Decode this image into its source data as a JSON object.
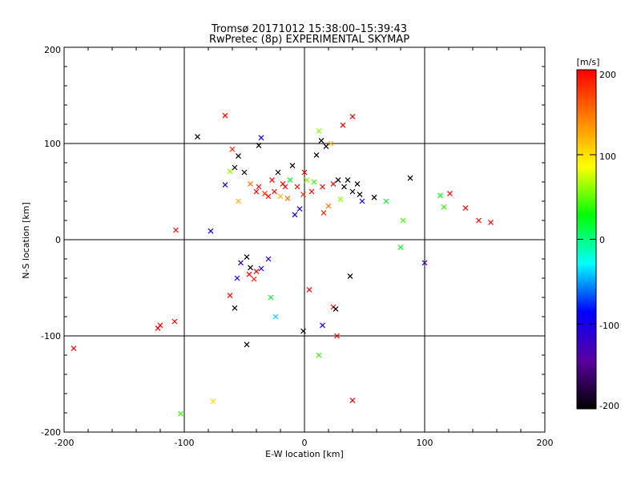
{
  "chart_data": {
    "type": "scatter",
    "title": "Tromsø 20171012 15:38:00–15:39:43",
    "subtitle": "RwPretec (8p) EXPERIMENTAL SKYMAP",
    "xlabel": "E-W location [km]",
    "ylabel": "N-S location [km]",
    "xlim": [
      -200,
      200
    ],
    "ylim": [
      -200,
      200
    ],
    "x_ticks": [
      "-200",
      "-100",
      "0",
      "100",
      "200"
    ],
    "y_ticks": [
      "-200",
      "-100",
      "0",
      "100",
      "200"
    ],
    "grid": true,
    "colorbar": {
      "unit": "[m/s]",
      "range": [
        -200,
        200
      ],
      "ticks": [
        "200",
        "100",
        "0",
        "-100",
        "-200"
      ],
      "colors": [
        "#000000",
        "#5a00a0",
        "#0000ff",
        "#00ffff",
        "#00ff00",
        "#ffff00",
        "#ff8000",
        "#ff0000"
      ]
    },
    "markers": {
      "cross": "large x markers",
      "dot": "small dot markers"
    },
    "points": [
      {
        "x": -66,
        "y": 129,
        "v": 200,
        "m": "x"
      },
      {
        "x": -89,
        "y": 107,
        "v": -200,
        "m": "x"
      },
      {
        "x": -36,
        "y": 106,
        "v": -100,
        "m": "x"
      },
      {
        "x": -38,
        "y": 98,
        "v": -200,
        "m": "x"
      },
      {
        "x": -60,
        "y": 94,
        "v": 180,
        "m": "x"
      },
      {
        "x": -55,
        "y": 87,
        "v": -200,
        "m": "x"
      },
      {
        "x": -62,
        "y": 71,
        "v": 60,
        "m": "x"
      },
      {
        "x": -58,
        "y": 75,
        "v": -200,
        "m": "x"
      },
      {
        "x": -50,
        "y": 70,
        "v": -200,
        "m": "x"
      },
      {
        "x": -66,
        "y": 57,
        "v": -100,
        "m": "x"
      },
      {
        "x": -55,
        "y": 40,
        "v": 120,
        "m": "x"
      },
      {
        "x": -38,
        "y": 55,
        "v": 200,
        "m": "x"
      },
      {
        "x": -33,
        "y": 48,
        "v": 180,
        "m": "x"
      },
      {
        "x": -27,
        "y": 62,
        "v": 200,
        "m": "x"
      },
      {
        "x": -22,
        "y": 70,
        "v": -200,
        "m": "x"
      },
      {
        "x": -18,
        "y": 58,
        "v": 200,
        "m": "x"
      },
      {
        "x": -14,
        "y": 43,
        "v": 150,
        "m": "x"
      },
      {
        "x": -10,
        "y": 77,
        "v": -200,
        "m": "x"
      },
      {
        "x": -6,
        "y": 55,
        "v": 200,
        "m": "x"
      },
      {
        "x": -4,
        "y": 32,
        "v": -100,
        "m": "x"
      },
      {
        "x": -8,
        "y": 26,
        "v": -100,
        "m": "x"
      },
      {
        "x": 2,
        "y": 62,
        "v": 60,
        "m": "x"
      },
      {
        "x": 6,
        "y": 50,
        "v": 200,
        "m": "x"
      },
      {
        "x": 10,
        "y": 88,
        "v": -200,
        "m": "x"
      },
      {
        "x": 14,
        "y": 103,
        "v": -200,
        "m": "x"
      },
      {
        "x": 18,
        "y": 97,
        "v": -200,
        "m": "x"
      },
      {
        "x": 22,
        "y": 100,
        "v": 120,
        "m": "x"
      },
      {
        "x": 24,
        "y": 58,
        "v": 200,
        "m": "x"
      },
      {
        "x": 28,
        "y": 62,
        "v": -200,
        "m": "x"
      },
      {
        "x": 33,
        "y": 55,
        "v": -200,
        "m": "x"
      },
      {
        "x": 36,
        "y": 62,
        "v": -200,
        "m": "x"
      },
      {
        "x": 40,
        "y": 50,
        "v": -200,
        "m": "x"
      },
      {
        "x": 44,
        "y": 58,
        "v": -200,
        "m": "x"
      },
      {
        "x": 46,
        "y": 47,
        "v": -200,
        "m": "x"
      },
      {
        "x": 48,
        "y": 40,
        "v": -100,
        "m": "x"
      },
      {
        "x": 30,
        "y": 42,
        "v": 60,
        "m": "x"
      },
      {
        "x": 20,
        "y": 35,
        "v": 150,
        "m": "x"
      },
      {
        "x": 16,
        "y": 28,
        "v": 180,
        "m": "x"
      },
      {
        "x": 12,
        "y": 113,
        "v": 60,
        "m": "x"
      },
      {
        "x": 32,
        "y": 119,
        "v": 200,
        "m": "x"
      },
      {
        "x": 40,
        "y": 128,
        "v": 200,
        "m": "x"
      },
      {
        "x": 58,
        "y": 44,
        "v": -200,
        "m": "x"
      },
      {
        "x": 68,
        "y": 40,
        "v": 20,
        "m": "x"
      },
      {
        "x": 82,
        "y": 20,
        "v": 40,
        "m": "x"
      },
      {
        "x": 88,
        "y": 64,
        "v": -200,
        "m": "x"
      },
      {
        "x": 113,
        "y": 46,
        "v": 20,
        "m": "x"
      },
      {
        "x": 116,
        "y": 34,
        "v": 40,
        "m": "x"
      },
      {
        "x": 121,
        "y": 48,
        "v": 200,
        "m": "x"
      },
      {
        "x": 134,
        "y": 33,
        "v": 200,
        "m": "x"
      },
      {
        "x": 145,
        "y": 20,
        "v": 200,
        "m": "x"
      },
      {
        "x": 155,
        "y": 18,
        "v": 200,
        "m": "x"
      },
      {
        "x": 100,
        "y": -24,
        "v": -120,
        "m": "x"
      },
      {
        "x": 80,
        "y": -8,
        "v": 20,
        "m": "x"
      },
      {
        "x": -107,
        "y": 10,
        "v": 200,
        "m": "x"
      },
      {
        "x": -78,
        "y": 9,
        "v": -100,
        "m": "x"
      },
      {
        "x": -48,
        "y": -18,
        "v": -200,
        "m": "x"
      },
      {
        "x": -53,
        "y": -24,
        "v": -100,
        "m": "x"
      },
      {
        "x": -45,
        "y": -29,
        "v": -200,
        "m": "x"
      },
      {
        "x": -40,
        "y": -33,
        "v": 200,
        "m": "x"
      },
      {
        "x": -46,
        "y": -36,
        "v": 200,
        "m": "x"
      },
      {
        "x": -56,
        "y": -40,
        "v": -100,
        "m": "x"
      },
      {
        "x": -42,
        "y": -41,
        "v": 180,
        "m": "x"
      },
      {
        "x": -36,
        "y": -30,
        "v": -100,
        "m": "x"
      },
      {
        "x": -30,
        "y": -20,
        "v": -100,
        "m": "x"
      },
      {
        "x": -62,
        "y": -58,
        "v": 200,
        "m": "x"
      },
      {
        "x": -58,
        "y": -71,
        "v": -200,
        "m": "x"
      },
      {
        "x": -28,
        "y": -60,
        "v": 20,
        "m": "x"
      },
      {
        "x": -24,
        "y": -80,
        "v": -40,
        "m": "x"
      },
      {
        "x": 4,
        "y": -52,
        "v": 200,
        "m": "x"
      },
      {
        "x": 24,
        "y": -70,
        "v": 200,
        "m": "x"
      },
      {
        "x": 26,
        "y": -72,
        "v": -200,
        "m": "x"
      },
      {
        "x": 38,
        "y": -38,
        "v": -200,
        "m": "x"
      },
      {
        "x": -1,
        "y": -95,
        "v": -200,
        "m": "x"
      },
      {
        "x": 15,
        "y": -89,
        "v": -100,
        "m": "x"
      },
      {
        "x": 27,
        "y": -100,
        "v": 200,
        "m": "x"
      },
      {
        "x": -48,
        "y": -109,
        "v": -200,
        "m": "x"
      },
      {
        "x": -108,
        "y": -85,
        "v": 200,
        "m": "x"
      },
      {
        "x": -120,
        "y": -89,
        "v": 200,
        "m": "x"
      },
      {
        "x": -122,
        "y": -92,
        "v": 200,
        "m": "x"
      },
      {
        "x": -192,
        "y": -113,
        "v": 200,
        "m": "x"
      },
      {
        "x": 12,
        "y": -120,
        "v": 40,
        "m": "x"
      },
      {
        "x": -76,
        "y": -168,
        "v": 100,
        "m": "x"
      },
      {
        "x": 40,
        "y": -167,
        "v": 200,
        "m": "x"
      },
      {
        "x": -103,
        "y": -181,
        "v": 40,
        "m": "x"
      },
      {
        "x": -45,
        "y": 58,
        "v": 150,
        "m": "x"
      },
      {
        "x": -40,
        "y": 50,
        "v": 200,
        "m": "x"
      },
      {
        "x": -25,
        "y": 50,
        "v": 200,
        "m": "x"
      },
      {
        "x": -20,
        "y": 45,
        "v": 120,
        "m": "x"
      },
      {
        "x": -12,
        "y": 62,
        "v": 20,
        "m": "x"
      },
      {
        "x": 0,
        "y": 70,
        "v": 200,
        "m": "x"
      },
      {
        "x": 8,
        "y": 60,
        "v": 40,
        "m": "x"
      },
      {
        "x": 15,
        "y": 55,
        "v": 200,
        "m": "x"
      },
      {
        "x": -1,
        "y": 47,
        "v": 180,
        "m": "x"
      },
      {
        "x": -16,
        "y": 55,
        "v": 200,
        "m": "x"
      },
      {
        "x": -30,
        "y": 45,
        "v": 200,
        "m": "x"
      }
    ]
  }
}
